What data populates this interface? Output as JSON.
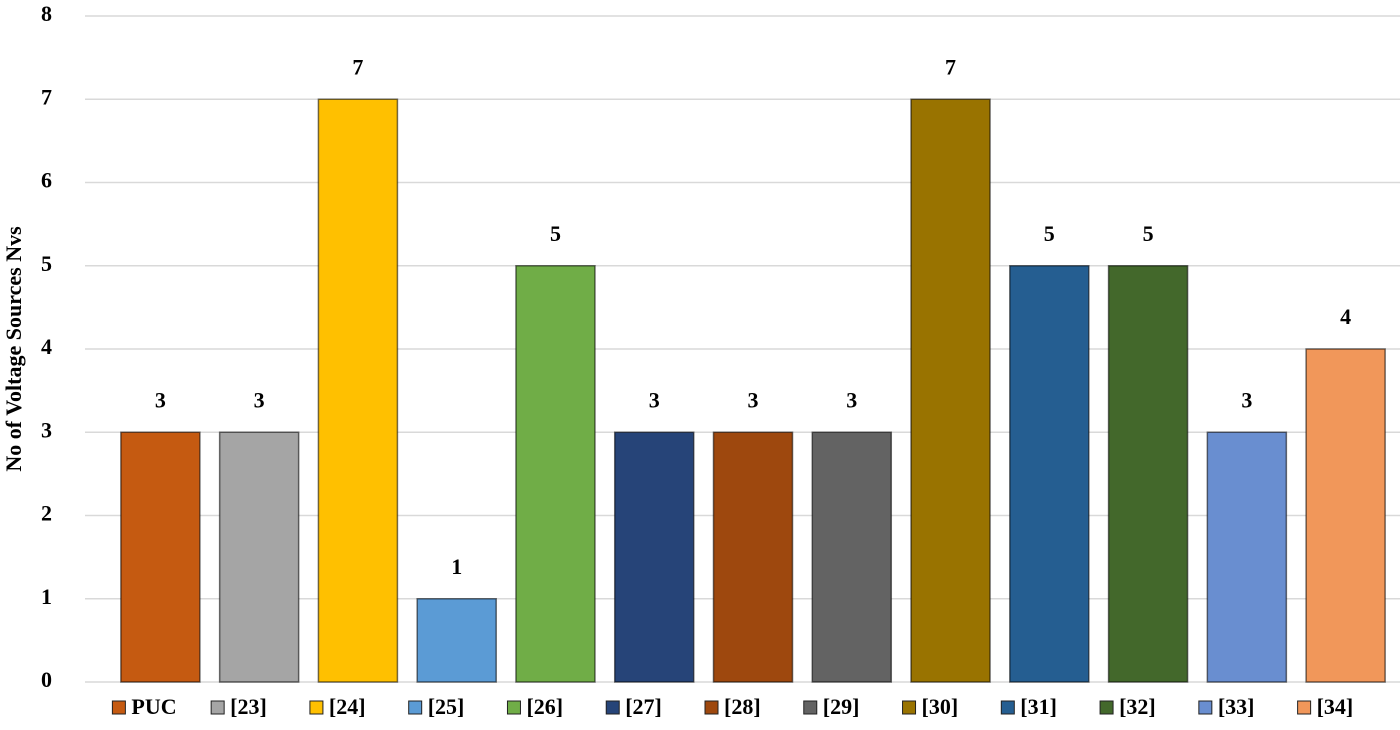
{
  "chart_data": {
    "type": "bar",
    "y_label": "No of Voltage Sources Nvs",
    "categories": [
      "PUC",
      "[23]",
      "[24]",
      "[25]",
      "[26]",
      "[27]",
      "[28]",
      "[29]",
      "[30]",
      "[31]",
      "[32]",
      "[33]",
      "[34]"
    ],
    "values": [
      3,
      3,
      7,
      1,
      5,
      3,
      3,
      3,
      7,
      5,
      5,
      3,
      4
    ],
    "colors": [
      "#c55a11",
      "#a5a5a5",
      "#ffc000",
      "#5b9bd5",
      "#70ad47",
      "#264478",
      "#9e480e",
      "#636363",
      "#997300",
      "#255e91",
      "#43682b",
      "#698ed0",
      "#f1975a"
    ],
    "ylim": [
      0,
      8
    ],
    "yticks": [
      0,
      1,
      2,
      3,
      4,
      5,
      6,
      7,
      8
    ],
    "grid": true,
    "legend": "bottom"
  }
}
